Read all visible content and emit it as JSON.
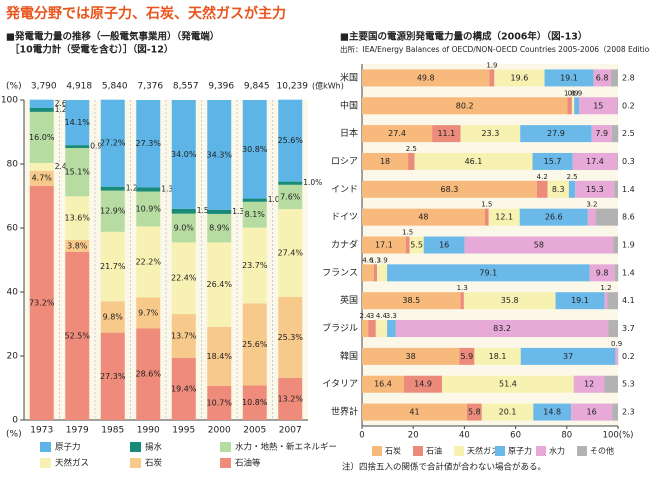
{
  "title": "発電分野では原子力、石炭、天然ガスが主力",
  "note": "注）四捨五入の関係で合計値が合わない場合がある。",
  "chart_data": [
    {
      "type": "stacked_bar",
      "title": "■発電電力量の推移（一般電気事業用）（発電端）",
      "subtitle": "［10電力計（受電を含む）］（図-12）",
      "y_unit": "(%)",
      "total_unit": "(億kWh)",
      "categories": [
        "1973",
        "1979",
        "1985",
        "1990",
        "1995",
        "2000",
        "2005",
        "2007"
      ],
      "totals": [
        {
          "value": 3790,
          "label": "3,790"
        },
        {
          "value": 4918,
          "label": "4,918"
        },
        {
          "value": 5840,
          "label": "5,840"
        },
        {
          "value": 7376,
          "label": "7,376"
        },
        {
          "value": 8557,
          "label": "8,557"
        },
        {
          "value": 9396,
          "label": "9,396"
        },
        {
          "value": 9845,
          "label": "9,845"
        },
        {
          "value": 10239,
          "label": "10,239"
        }
      ],
      "ylim": [
        0,
        100
      ],
      "yticks": [
        0,
        20,
        40,
        60,
        80,
        100
      ],
      "series": [
        {
          "name": "原子力",
          "color": "#5cb5e6",
          "values": [
            2.6,
            14.1,
            27.2,
            27.3,
            34.0,
            34.3,
            30.8,
            25.6
          ],
          "value_labels": [
            "2.6%",
            "14.1%",
            "27.2%",
            "27.3%",
            "34.0%",
            "34.3%",
            "30.8%",
            "25.6%"
          ]
        },
        {
          "name": "揚水",
          "color": "#178a78",
          "values": [
            1.2,
            0.9,
            1.2,
            1.3,
            1.5,
            1.3,
            1.0,
            1.0
          ],
          "value_labels": [
            "1.2%",
            "0.9%",
            "1.2%",
            "1.3%",
            "1.5%",
            "1.3%",
            "1.0%",
            "1.0%"
          ]
        },
        {
          "name": "水力・地熱・新エネルギー",
          "color": "#b7dca2",
          "values": [
            16.0,
            15.1,
            12.9,
            10.9,
            9.0,
            8.9,
            8.1,
            7.6
          ],
          "value_labels": [
            "16.0%",
            "15.1%",
            "12.9%",
            "10.9%",
            "9.0%",
            "8.9%",
            "8.1%",
            "7.6%"
          ]
        },
        {
          "name": "天然ガス",
          "color": "#f8f1b4",
          "values": [
            2.4,
            13.6,
            21.7,
            22.2,
            22.4,
            26.4,
            23.7,
            27.4
          ],
          "value_labels": [
            "2.4%",
            "13.6%",
            "21.7%",
            "22.2%",
            "22.4%",
            "26.4%",
            "23.7%",
            "27.4%"
          ]
        },
        {
          "name": "石炭",
          "color": "#f7c98a",
          "values": [
            4.7,
            3.8,
            9.8,
            9.7,
            13.7,
            18.4,
            25.6,
            25.3
          ],
          "value_labels": [
            "4.7%",
            "3.8%",
            "9.8%",
            "9.7%",
            "13.7%",
            "18.4%",
            "25.6%",
            "25.3%"
          ]
        },
        {
          "name": "石油等",
          "color": "#ef8b7a",
          "values": [
            73.2,
            52.5,
            27.3,
            28.6,
            19.4,
            10.7,
            10.8,
            13.2
          ],
          "value_labels": [
            "73.2%",
            "52.5%",
            "27.3%",
            "28.6%",
            "19.4%",
            "10.7%",
            "10.8%",
            "13.2%"
          ]
        }
      ]
    },
    {
      "type": "stacked_bar_h",
      "title": "■主要国の電源別発電電力量の構成（2006年）（図-13）",
      "source": "出所：IEA/Energy Balances of OECD/NON-OECD Countries 2005-2006（2008 Edition）",
      "categories": [
        "米国",
        "中国",
        "日本",
        "ロシア",
        "インド",
        "ドイツ",
        "カナダ",
        "フランス",
        "英国",
        "ブラジル",
        "韓国",
        "イタリア",
        "世界計"
      ],
      "xlim": [
        0,
        100
      ],
      "xticks": [
        0,
        20,
        40,
        60,
        80,
        {
          "value": 100,
          "label": "100(%)"
        }
      ],
      "series": [
        {
          "name": "石炭",
          "color": "#f7b97c",
          "values": [
            49.8,
            80.2,
            27.4,
            18.0,
            68.3,
            48.0,
            17.1,
            4.6,
            38.5,
            2.4,
            38.0,
            16.4,
            41.0
          ]
        },
        {
          "name": "石油",
          "color": "#ec8b7b",
          "values": [
            1.9,
            1.8,
            11.1,
            2.5,
            4.2,
            1.5,
            1.5,
            1.3,
            1.3,
            3.0,
            5.9,
            14.9,
            5.8
          ]
        },
        {
          "name": "天然ガス",
          "color": "#f8f2b2",
          "values": [
            19.6,
            0.9,
            23.3,
            46.1,
            8.3,
            12.1,
            5.5,
            3.9,
            35.8,
            4.4,
            18.1,
            51.4,
            20.1
          ]
        },
        {
          "name": "原子力",
          "color": "#6bb9e9",
          "values": [
            19.1,
            1.9,
            27.9,
            15.7,
            2.5,
            26.6,
            16.0,
            79.1,
            19.1,
            3.3,
            37.0,
            0,
            14.8
          ]
        },
        {
          "name": "水力",
          "color": "#e6a9d8",
          "values": [
            6.8,
            15.0,
            7.9,
            17.4,
            15.3,
            3.2,
            58.0,
            9.8,
            1.2,
            83.2,
            0.9,
            12.0,
            16.0
          ]
        },
        {
          "name": "その他",
          "color": "#b2b2b2",
          "values": [
            2.8,
            0.2,
            2.5,
            0.3,
            1.4,
            8.6,
            1.9,
            1.4,
            4.1,
            3.7,
            0.2,
            5.3,
            2.3
          ]
        }
      ]
    }
  ]
}
